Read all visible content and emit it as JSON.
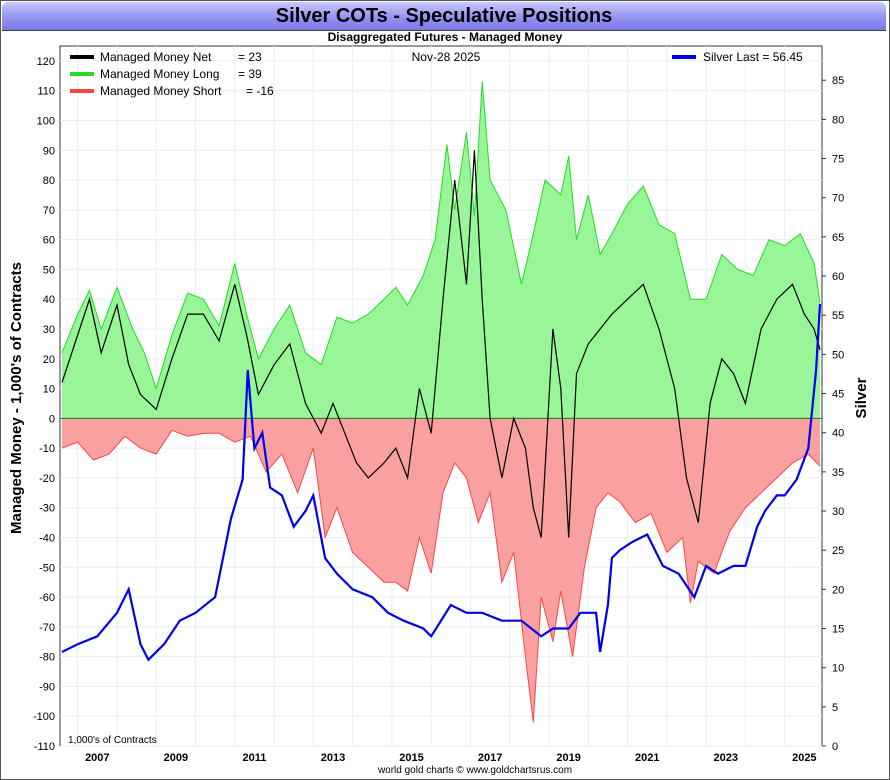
{
  "title": "Silver COTs - Speculative Positions",
  "subtitle": "Disaggregated Futures - Managed Money",
  "date": "Nov-28  2025",
  "footer": "world gold charts © www.goldchartsrus.com",
  "units_note": "1,000's of Contracts",
  "legend": [
    {
      "label": "Managed Money Net",
      "value": "= 23",
      "color": "#000000"
    },
    {
      "label": "Managed Money Long",
      "value": "= 39",
      "color": "#22dd22"
    },
    {
      "label": "Managed Money Short",
      "value": "= -16",
      "color": "#ff4444"
    },
    {
      "label": "Silver Last = 56.45",
      "value": "",
      "color": "#0000ee"
    }
  ],
  "chart_data": {
    "type": "area",
    "title": "Silver COTs - Speculative Positions",
    "ylabel": "Managed Money - 1,000's of Contracts",
    "y2label": "Silver",
    "ylim": [
      -110,
      125
    ],
    "y2lim": [
      0,
      90
    ],
    "xlim": [
      2006.55,
      2025.95
    ],
    "x_ticks": [
      "2007",
      "2009",
      "2011",
      "2013",
      "2015",
      "2017",
      "2019",
      "2021",
      "2023",
      "2025"
    ],
    "y_ticks": [
      120,
      110,
      100,
      90,
      80,
      70,
      60,
      50,
      40,
      30,
      20,
      10,
      0,
      -10,
      -20,
      -30,
      -40,
      -50,
      -60,
      -70,
      -80,
      -90,
      -100,
      -110
    ],
    "y2_ticks": [
      85,
      80,
      75,
      70,
      65,
      60,
      55,
      50,
      45,
      40,
      35,
      30,
      25,
      20,
      15,
      10,
      5,
      0
    ],
    "series": [
      {
        "name": "Managed Money Long",
        "color": "#22dd22",
        "x": [
          2006.6,
          2007.0,
          2007.3,
          2007.6,
          2008.0,
          2008.4,
          2008.7,
          2009.0,
          2009.4,
          2009.8,
          2010.2,
          2010.6,
          2011.0,
          2011.3,
          2011.6,
          2012.0,
          2012.4,
          2012.8,
          2013.2,
          2013.6,
          2014.0,
          2014.4,
          2014.8,
          2015.1,
          2015.4,
          2015.8,
          2016.1,
          2016.4,
          2016.6,
          2016.9,
          2017.1,
          2017.3,
          2017.5,
          2017.9,
          2018.3,
          2018.6,
          2018.9,
          2019.3,
          2019.5,
          2019.7,
          2020.0,
          2020.3,
          2020.6,
          2021.0,
          2021.4,
          2021.8,
          2022.2,
          2022.6,
          2023.0,
          2023.4,
          2023.8,
          2024.2,
          2024.6,
          2025.0,
          2025.4,
          2025.75,
          2025.9
        ],
        "values": [
          22,
          35,
          43,
          30,
          44,
          30,
          22,
          10,
          28,
          42,
          40,
          31,
          52,
          35,
          20,
          30,
          38,
          22,
          18,
          34,
          32,
          35,
          40,
          44,
          38,
          48,
          60,
          92,
          70,
          96,
          68,
          113,
          80,
          70,
          45,
          62,
          80,
          75,
          88,
          60,
          75,
          55,
          62,
          72,
          78,
          65,
          62,
          40,
          40,
          55,
          50,
          48,
          60,
          58,
          62,
          52,
          39
        ]
      },
      {
        "name": "Managed Money Short",
        "color": "#ff4444",
        "x": [
          2006.6,
          2007.0,
          2007.4,
          2007.8,
          2008.2,
          2008.6,
          2009.0,
          2009.4,
          2009.8,
          2010.2,
          2010.6,
          2011.0,
          2011.4,
          2011.8,
          2012.2,
          2012.6,
          2013.0,
          2013.3,
          2013.6,
          2014.0,
          2014.4,
          2014.8,
          2015.1,
          2015.4,
          2015.7,
          2016.0,
          2016.3,
          2016.6,
          2016.9,
          2017.2,
          2017.5,
          2017.8,
          2018.1,
          2018.4,
          2018.6,
          2018.8,
          2019.1,
          2019.3,
          2019.6,
          2019.9,
          2020.2,
          2020.5,
          2020.8,
          2021.2,
          2021.6,
          2022.0,
          2022.4,
          2022.6,
          2022.8,
          2023.2,
          2023.6,
          2024.0,
          2024.4,
          2024.8,
          2025.2,
          2025.6,
          2025.9
        ],
        "values": [
          -10,
          -8,
          -14,
          -12,
          -6,
          -10,
          -12,
          -4,
          -6,
          -5,
          -5,
          -8,
          -6,
          -18,
          -12,
          -25,
          -10,
          -40,
          -30,
          -45,
          -50,
          -55,
          -55,
          -58,
          -40,
          -52,
          -25,
          -15,
          -20,
          -35,
          -25,
          -55,
          -45,
          -80,
          -102,
          -60,
          -75,
          -58,
          -80,
          -50,
          -30,
          -25,
          -28,
          -35,
          -32,
          -45,
          -40,
          -62,
          -48,
          -52,
          -38,
          -30,
          -25,
          -20,
          -15,
          -12,
          -16
        ]
      },
      {
        "name": "Managed Money Net",
        "color": "#000000",
        "x": [
          2006.6,
          2007.0,
          2007.3,
          2007.6,
          2008.0,
          2008.3,
          2008.6,
          2009.0,
          2009.4,
          2009.8,
          2010.2,
          2010.6,
          2011.0,
          2011.3,
          2011.6,
          2012.0,
          2012.4,
          2012.8,
          2013.2,
          2013.5,
          2013.8,
          2014.1,
          2014.4,
          2014.8,
          2015.1,
          2015.4,
          2015.7,
          2016.0,
          2016.3,
          2016.6,
          2016.9,
          2017.1,
          2017.3,
          2017.5,
          2017.8,
          2018.1,
          2018.4,
          2018.6,
          2018.8,
          2019.1,
          2019.3,
          2019.5,
          2019.7,
          2020.0,
          2020.3,
          2020.6,
          2021.0,
          2021.4,
          2021.8,
          2022.2,
          2022.5,
          2022.8,
          2023.1,
          2023.4,
          2023.7,
          2024.0,
          2024.4,
          2024.8,
          2025.2,
          2025.5,
          2025.75,
          2025.9
        ],
        "values": [
          12,
          28,
          40,
          22,
          38,
          18,
          8,
          3,
          20,
          35,
          35,
          26,
          45,
          28,
          8,
          18,
          25,
          5,
          -5,
          5,
          -5,
          -15,
          -20,
          -15,
          -10,
          -20,
          10,
          -5,
          40,
          80,
          45,
          90,
          40,
          0,
          -20,
          0,
          -10,
          -30,
          -40,
          30,
          10,
          -40,
          15,
          25,
          30,
          35,
          40,
          45,
          30,
          10,
          -20,
          -35,
          5,
          20,
          15,
          5,
          30,
          40,
          45,
          35,
          30,
          23
        ]
      },
      {
        "name": "Silver Last",
        "color": "#0000ee",
        "axis": "y2",
        "x": [
          2006.6,
          2007.0,
          2007.5,
          2008.0,
          2008.3,
          2008.6,
          2008.8,
          2009.2,
          2009.6,
          2010.0,
          2010.5,
          2010.9,
          2011.2,
          2011.33,
          2011.5,
          2011.7,
          2011.9,
          2012.2,
          2012.5,
          2012.8,
          2013.0,
          2013.3,
          2013.6,
          2014.0,
          2014.5,
          2014.9,
          2015.3,
          2015.8,
          2016.0,
          2016.5,
          2016.9,
          2017.3,
          2017.8,
          2018.3,
          2018.8,
          2019.1,
          2019.5,
          2019.8,
          2020.2,
          2020.3,
          2020.5,
          2020.6,
          2020.8,
          2021.1,
          2021.5,
          2021.9,
          2022.3,
          2022.7,
          2023.0,
          2023.3,
          2023.7,
          2024.0,
          2024.3,
          2024.5,
          2024.8,
          2025.0,
          2025.3,
          2025.6,
          2025.8,
          2025.9
        ],
        "values": [
          12,
          13,
          14,
          17,
          20,
          13,
          11,
          13,
          16,
          17,
          19,
          29,
          34,
          48,
          38,
          40,
          33,
          32,
          28,
          30,
          32,
          24,
          22,
          20,
          19,
          17,
          16,
          15,
          14,
          18,
          17,
          17,
          16,
          16,
          14,
          15,
          15,
          17,
          17,
          12,
          18,
          24,
          25,
          26,
          27,
          23,
          22,
          19,
          23,
          22,
          23,
          23,
          28,
          30,
          32,
          32,
          34,
          38,
          48,
          56.45
        ]
      }
    ]
  }
}
